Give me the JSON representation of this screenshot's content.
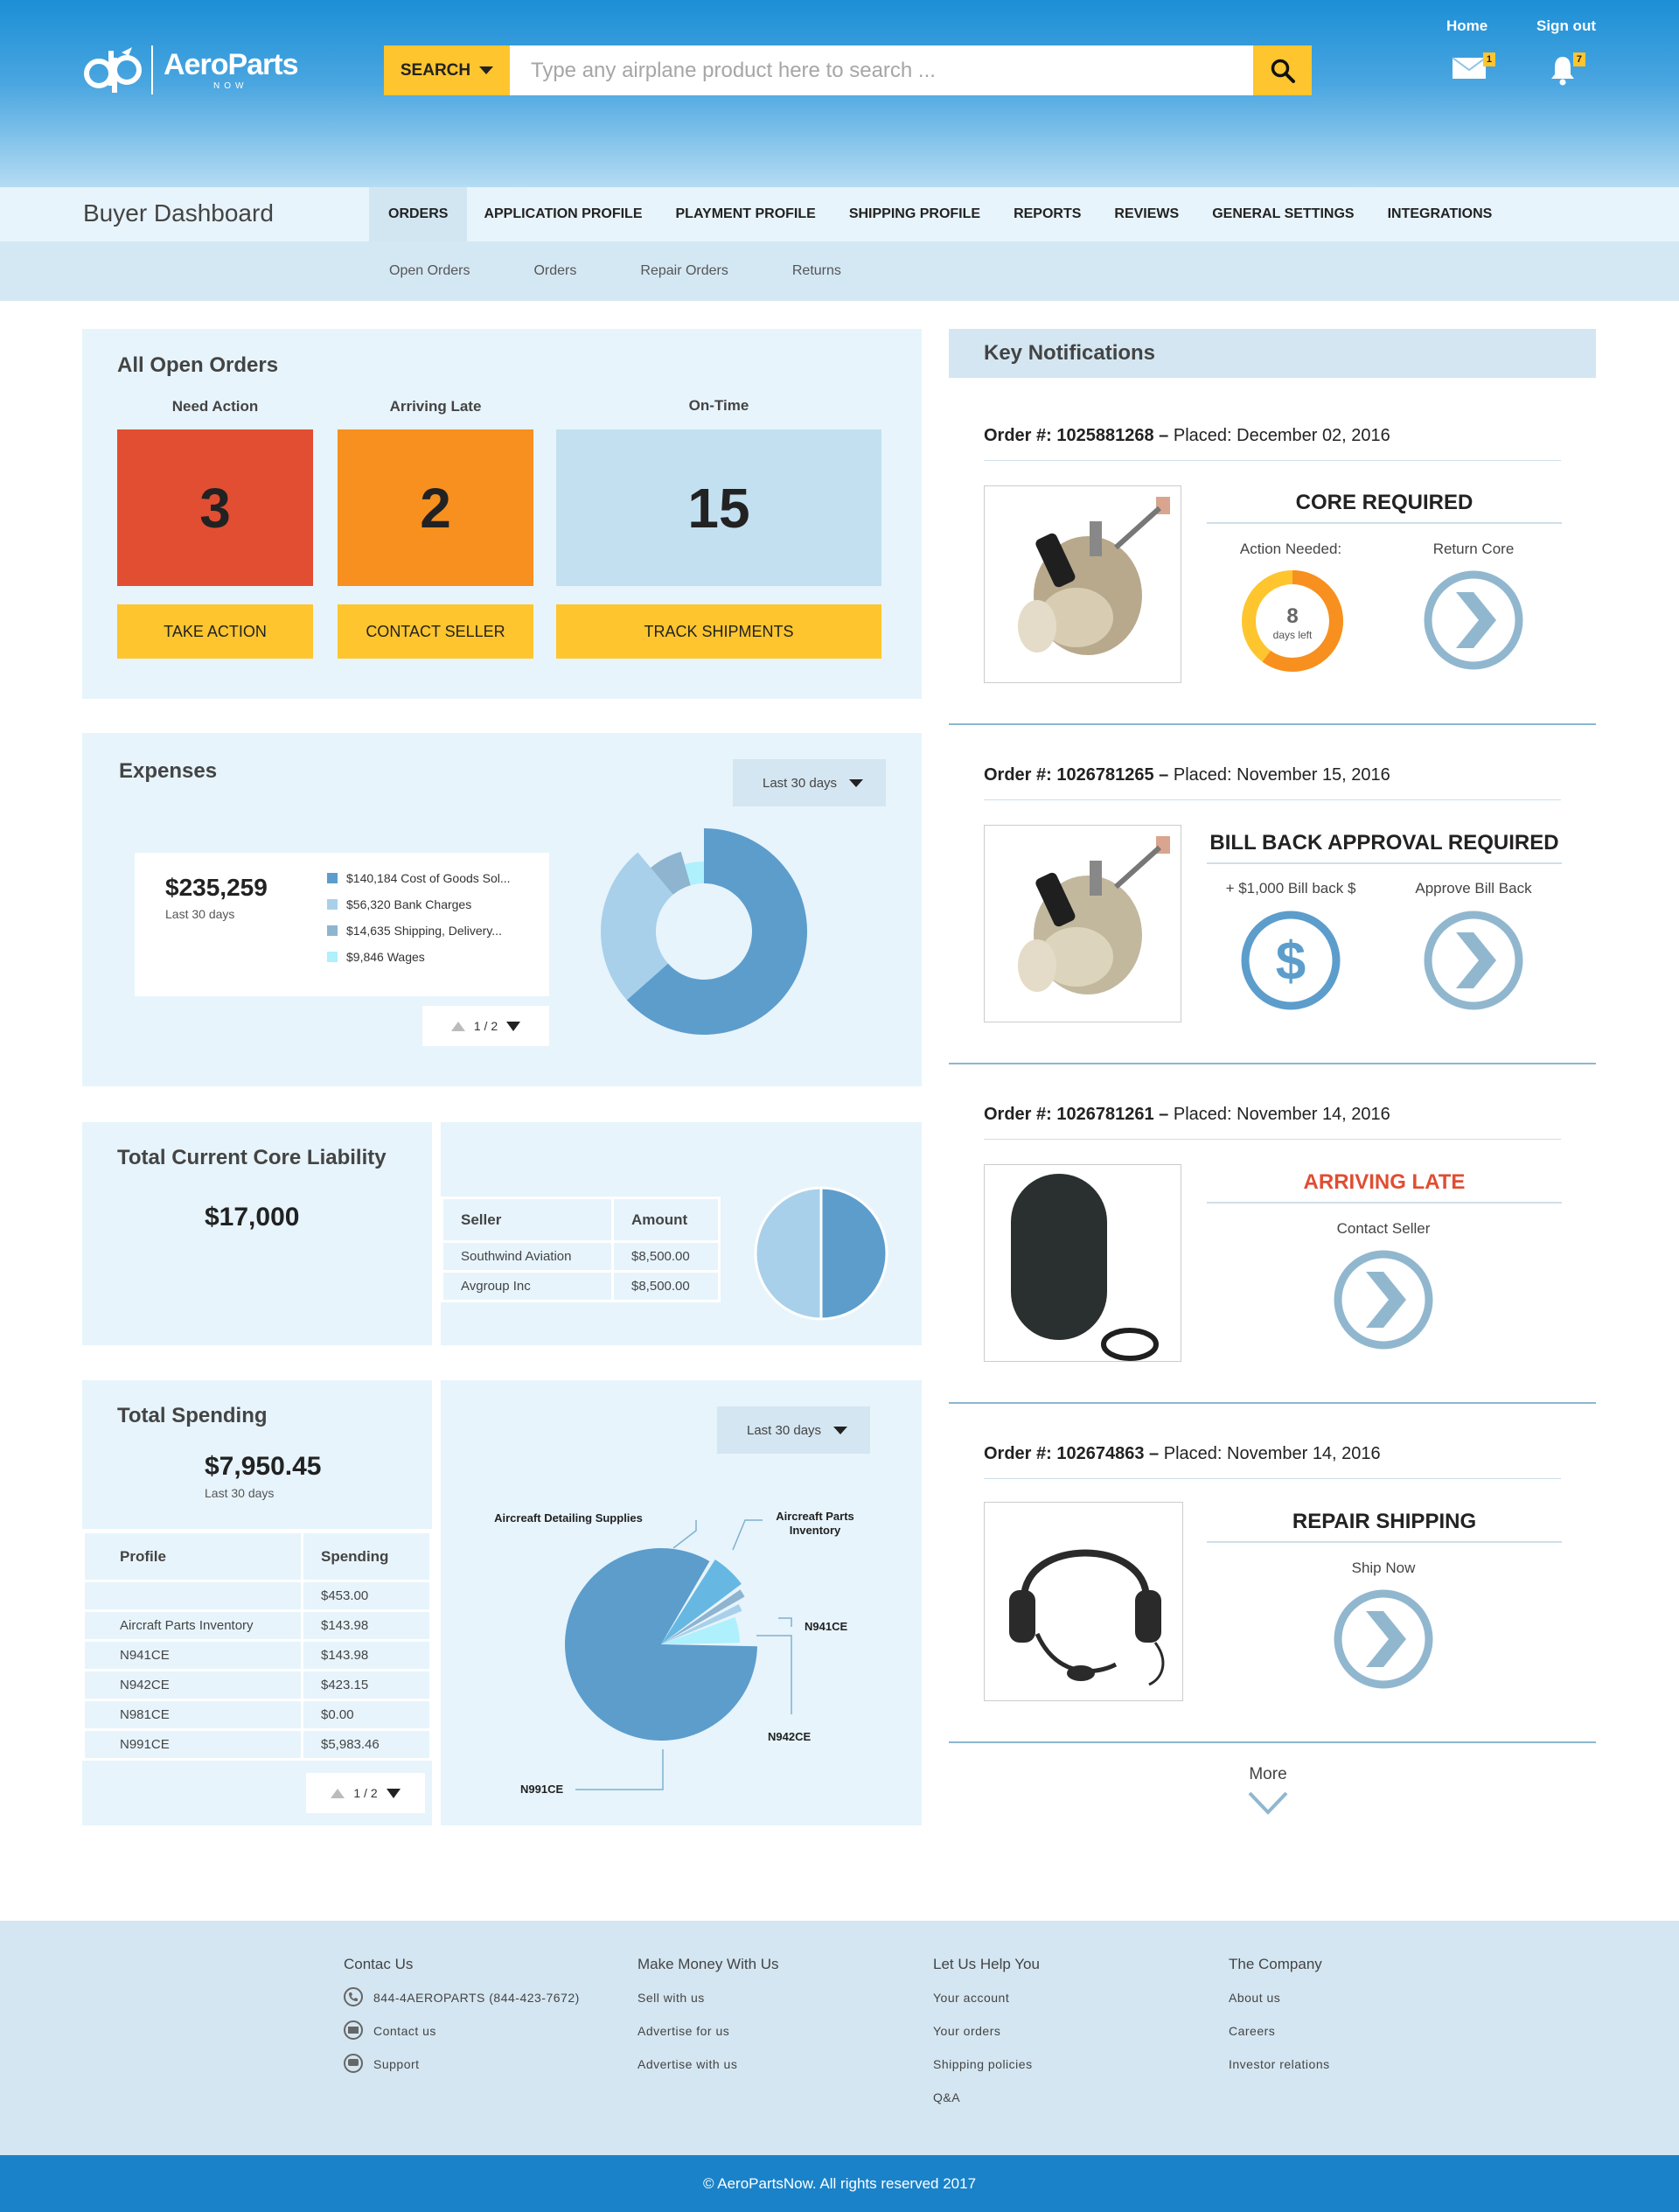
{
  "header": {
    "logo_text": "AeroParts",
    "logo_sub": "NOW",
    "search_dropdown": "SEARCH",
    "search_placeholder": "Type any airplane product here to search ...",
    "home_link": "Home",
    "signout_link": "Sign out",
    "mail_badge": "1",
    "bell_badge": "7"
  },
  "nav": {
    "title": "Buyer Dashboard",
    "tabs": [
      "ORDERS",
      "APPLICATION PROFILE",
      "PLAYMENT PROFILE",
      "SHIPPING PROFILE",
      "REPORTS",
      "REVIEWS",
      "GENERAL SETTINGS",
      "INTEGRATIONS"
    ],
    "subtabs": [
      "Open Orders",
      "Orders",
      "Repair Orders",
      "Returns"
    ]
  },
  "open_orders": {
    "title": "All Open Orders",
    "need_action": {
      "label": "Need Action",
      "value": "3",
      "button": "TAKE ACTION",
      "color": "#e24e32"
    },
    "arriving_late": {
      "label": "Arriving Late",
      "value": "2",
      "button": "CONTACT SELLER",
      "color": "#f7901f"
    },
    "on_time": {
      "label": "On-Time",
      "value": "15",
      "button": "TRACK SHIPMENTS",
      "color": "#c3e0f0"
    }
  },
  "expenses": {
    "title": "Expenses",
    "range": "Last 30 days",
    "total": "$235,259",
    "total_note": "Last 30 days",
    "legend": [
      {
        "label": "$140,184 Cost of Goods Sol...",
        "color": "#5c9dcc"
      },
      {
        "label": "$56,320 Bank Charges",
        "color": "#a8d0ea"
      },
      {
        "label": "$14,635 Shipping, Delivery...",
        "color": "#8eb4cf"
      },
      {
        "label": "$9,846 Wages",
        "color": "#aef0fb"
      }
    ],
    "pager": "1 / 2"
  },
  "core_liability": {
    "title": "Total Current Core Liability",
    "total": "$17,000",
    "headers": [
      "Seller",
      "Amount"
    ],
    "rows": [
      [
        "Southwind Aviation",
        "$8,500.00"
      ],
      [
        "Avgroup Inc",
        "$8,500.00"
      ]
    ]
  },
  "spending": {
    "title": "Total Spending",
    "total": "$7,950.45",
    "total_note": "Last 30 days",
    "range": "Last 30 days",
    "headers": [
      "Profile",
      "Spending"
    ],
    "rows": [
      [
        "",
        "$453.00"
      ],
      [
        "Aircraft Parts Inventory",
        "$143.98"
      ],
      [
        "N941CE",
        "$143.98"
      ],
      [
        "N942CE",
        "$423.15"
      ],
      [
        "N981CE",
        "$0.00"
      ],
      [
        "N991CE",
        "$5,983.46"
      ]
    ],
    "pager": "1 / 2",
    "chart_labels": {
      "detailing": "Aircreaft Detailing Supplies",
      "inventory": "Aircreaft Parts Inventory",
      "n941": "N941CE",
      "n942": "N942CE",
      "n991": "N991CE"
    }
  },
  "chart_data": [
    {
      "type": "pie",
      "title": "Expenses",
      "donut": true,
      "categories": [
        "Cost of Goods Sol...",
        "Bank Charges",
        "Shipping, Delivery...",
        "Wages"
      ],
      "values": [
        140184,
        56320,
        14635,
        9846
      ],
      "colors": [
        "#5c9dcc",
        "#a8d0ea",
        "#8eb4cf",
        "#aef0fb"
      ]
    },
    {
      "type": "pie",
      "title": "Total Current Core Liability",
      "categories": [
        "Southwind Aviation",
        "Avgroup Inc"
      ],
      "values": [
        8500,
        8500
      ],
      "colors": [
        "#5c9dcc",
        "#a8d0ea"
      ]
    },
    {
      "type": "pie",
      "title": "Total Spending",
      "categories": [
        "Aircreaft Detailing Supplies",
        "Aircreaft Parts Inventory",
        "N941CE",
        "N942CE",
        "N991CE"
      ],
      "values": [
        453.0,
        143.98,
        143.98,
        423.15,
        5983.46
      ],
      "colors": [
        "#66b8e3",
        "#8eb4cf",
        "#a8d0ea",
        "#aef0fb",
        "#5c9dcc"
      ]
    }
  ],
  "notifications": {
    "title": "Key Notifications",
    "items": [
      {
        "order_label": "Order #:",
        "order_no": "1025881268",
        "placed": "Placed: December 02, 2016",
        "title": "CORE REQUIRED",
        "left_label": "Action Needed:",
        "right_label": "Return Core",
        "days": "8",
        "days_note": "days left",
        "days_progress": 0.6
      },
      {
        "order_label": "Order #:",
        "order_no": "1026781265",
        "placed": "Placed: November 15, 2016",
        "title": "BILL BACK APPROVAL REQUIRED",
        "left_label": "+ $1,000 Bill back $",
        "right_label": "Approve Bill Back"
      },
      {
        "order_label": "Order #:",
        "order_no": "1026781261",
        "placed": "Placed: November 14, 2016",
        "title": "ARRIVING LATE",
        "center_label": "Contact Seller"
      },
      {
        "order_label": "Order #:",
        "order_no": "102674863",
        "placed": "Placed: November 14, 2016",
        "title": "REPAIR SHIPPING",
        "center_label": "Ship Now"
      }
    ],
    "more": "More"
  },
  "footer": {
    "cols": [
      {
        "title": "Contac Us",
        "links": [
          "844-4AEROPARTS (844-423-7672)",
          "Contact us",
          "Support"
        ]
      },
      {
        "title": "Make Money With Us",
        "links": [
          "Sell with us",
          "Advertise for us",
          "Advertise with us"
        ]
      },
      {
        "title": "Let Us Help You",
        "links": [
          "Your account",
          "Your orders",
          "Shipping policies",
          "Q&A"
        ]
      },
      {
        "title": "The Company",
        "links": [
          "About us",
          "Careers",
          "Investor relations"
        ]
      }
    ],
    "copyright": "© AeroPartsNow. All rights reserved 2017"
  }
}
